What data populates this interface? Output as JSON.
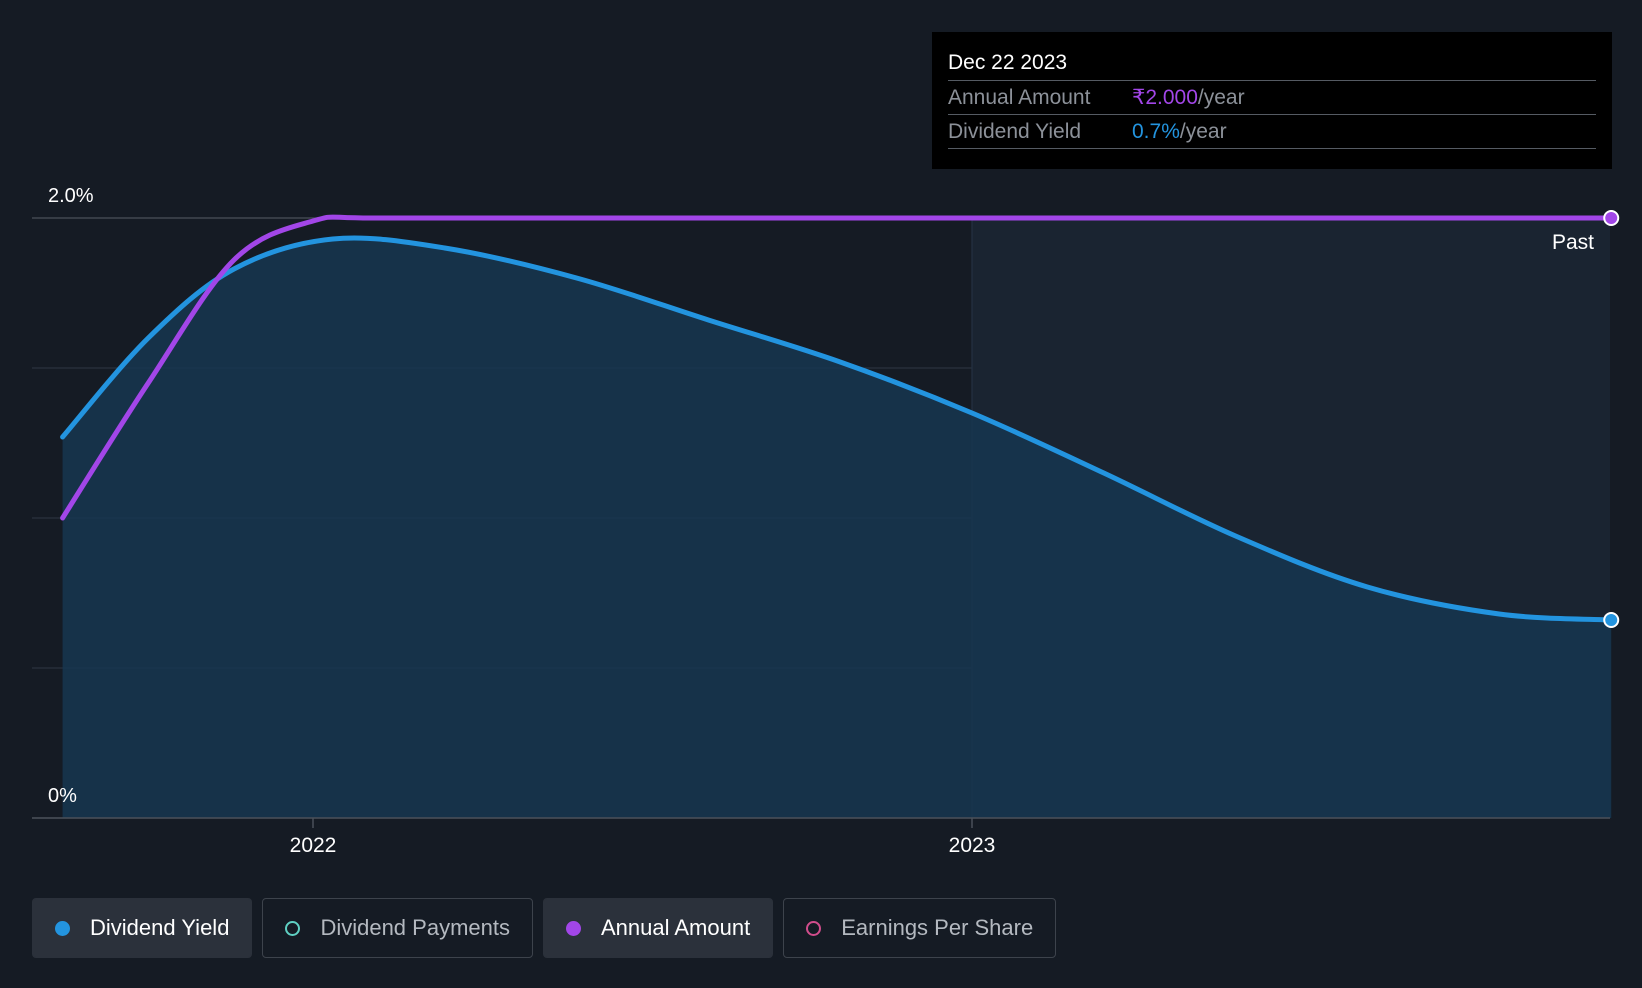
{
  "tooltip": {
    "date": "Dec 22 2023",
    "annual_amount_label": "Annual Amount",
    "annual_amount_value": "₹2.000",
    "annual_amount_unit": "/year",
    "dividend_yield_label": "Dividend Yield",
    "dividend_yield_value": "0.7%",
    "dividend_yield_unit": "/year"
  },
  "past_label": "Past",
  "colors": {
    "background": "#151b24",
    "dividend_yield": "#2394df",
    "annual_amount": "#a246e8",
    "dividend_payments": "#5fd0c3",
    "earnings_per_share": "#d14d8c",
    "area_fill": "#163650"
  },
  "legend": [
    {
      "label": "Dividend Yield",
      "active": true,
      "color_key": "dividend_yield",
      "icon": "filled-dot-icon"
    },
    {
      "label": "Dividend Payments",
      "active": false,
      "color_key": "dividend_payments",
      "icon": "hollow-dot-icon"
    },
    {
      "label": "Annual Amount",
      "active": true,
      "color_key": "annual_amount",
      "icon": "filled-dot-icon"
    },
    {
      "label": "Earnings Per Share",
      "active": false,
      "color_key": "earnings_per_share",
      "icon": "hollow-dot-icon"
    }
  ],
  "chart_data": {
    "type": "line",
    "title": "",
    "xlabel": "",
    "ylabel": "",
    "ylim": [
      0,
      2.0
    ],
    "y_tick_labels": [
      "0%",
      "2.0%"
    ],
    "x_tick_labels": [
      "2022",
      "2023"
    ],
    "x_ticks": [
      2022.0,
      2023.0
    ],
    "xlim": [
      2021.5,
      2024.0
    ],
    "grid": true,
    "past_region_from": 2023.0,
    "series": [
      {
        "name": "Dividend Yield",
        "color_key": "dividend_yield",
        "area": true,
        "points": [
          [
            2021.62,
            1.27
          ],
          [
            2021.75,
            1.6
          ],
          [
            2021.88,
            1.83
          ],
          [
            2022.03,
            1.93
          ],
          [
            2022.2,
            1.9
          ],
          [
            2022.4,
            1.8
          ],
          [
            2022.6,
            1.66
          ],
          [
            2022.8,
            1.52
          ],
          [
            2023.0,
            1.35
          ],
          [
            2023.2,
            1.15
          ],
          [
            2023.4,
            0.94
          ],
          [
            2023.6,
            0.77
          ],
          [
            2023.8,
            0.68
          ],
          [
            2023.97,
            0.66
          ]
        ]
      },
      {
        "name": "Annual Amount",
        "color_key": "annual_amount",
        "area": false,
        "points": [
          [
            2021.62,
            1.0
          ],
          [
            2021.75,
            1.45
          ],
          [
            2021.88,
            1.86
          ],
          [
            2022.0,
            1.99
          ],
          [
            2022.1,
            2.0
          ],
          [
            2022.5,
            2.0
          ],
          [
            2023.0,
            2.0
          ],
          [
            2023.5,
            2.0
          ],
          [
            2023.97,
            2.0
          ]
        ]
      }
    ]
  }
}
